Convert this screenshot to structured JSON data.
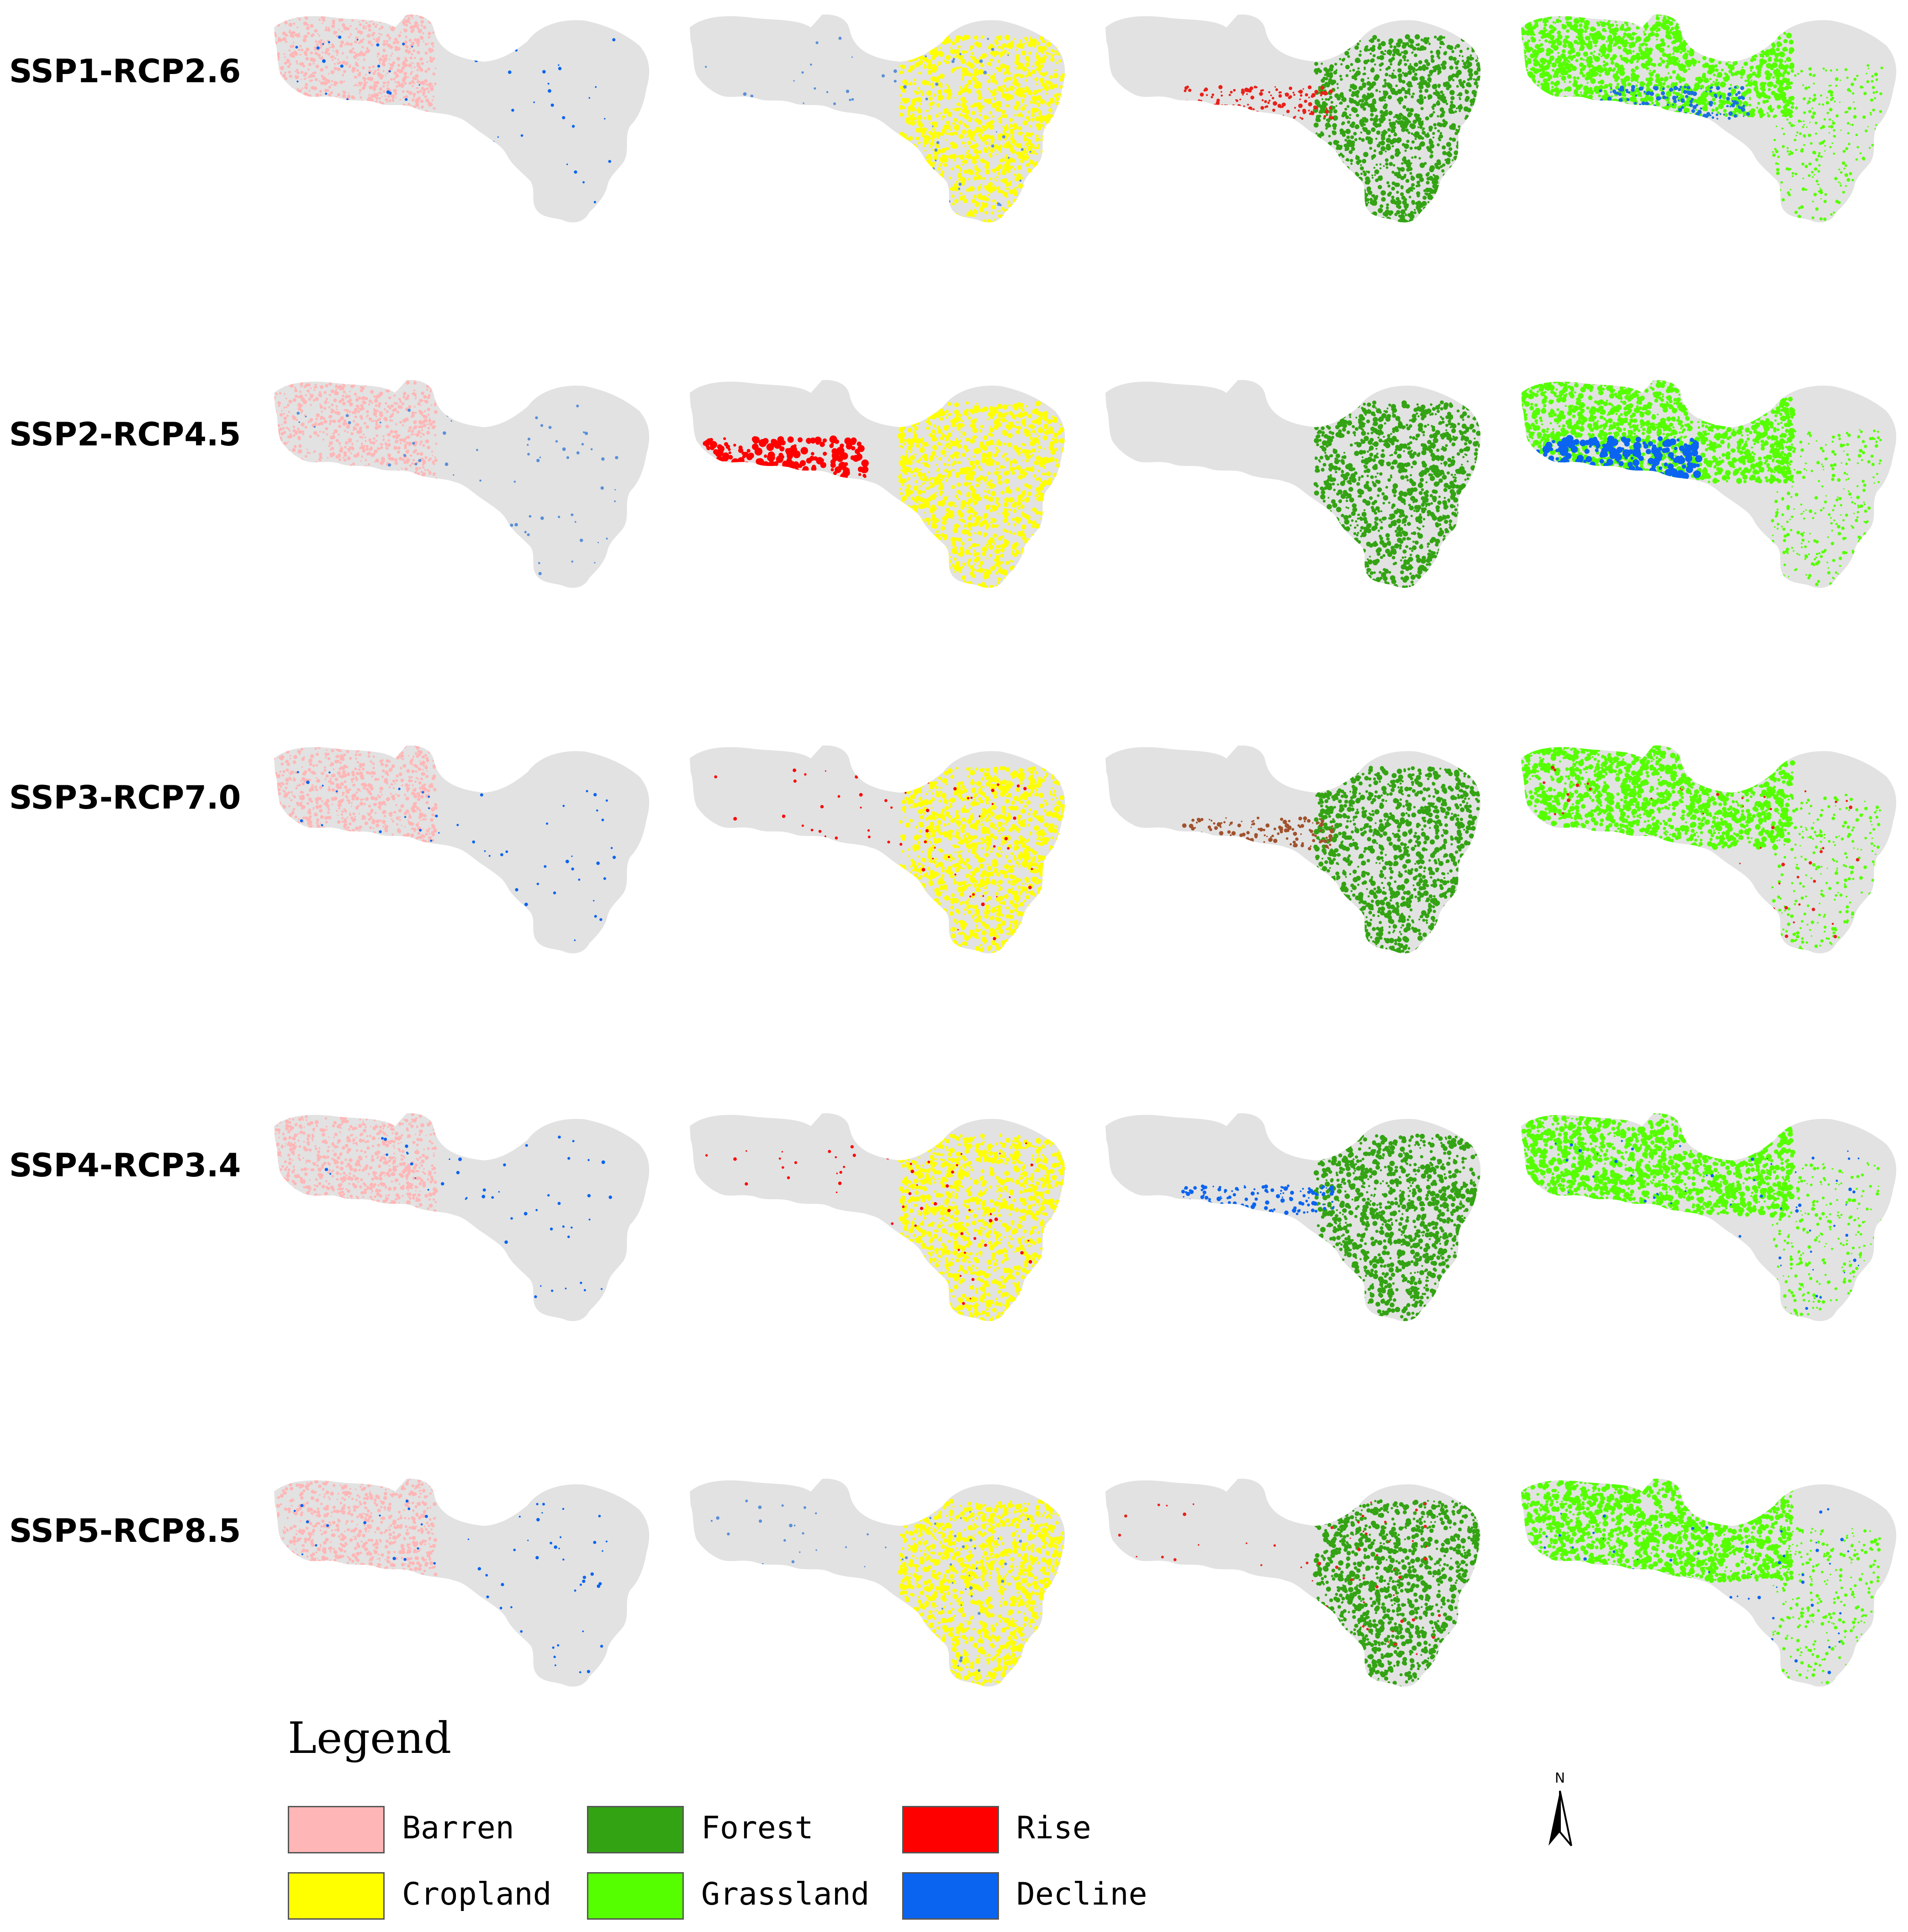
{
  "map_data": {
    "base_color": "#e2e2e2",
    "rows": [
      {
        "scenario": "SSP1-RCP2.6",
        "panels": [
          {
            "type": "Barren",
            "overlays": [
              {
                "kind": "pattern",
                "color": "#ffb6b6"
              },
              {
                "kind": "speck",
                "color": "#0a64f0"
              }
            ]
          },
          {
            "type": "Cropland",
            "overlays": [
              {
                "kind": "east",
                "color": "#ffff00"
              },
              {
                "kind": "speck",
                "color": "#5a8fd8"
              }
            ]
          },
          {
            "type": "Forest",
            "overlays": [
              {
                "kind": "east",
                "color": "#33a313"
              },
              {
                "kind": "belt",
                "color": "#e8211a"
              }
            ]
          },
          {
            "type": "Grassland",
            "overlays": [
              {
                "kind": "west",
                "color": "#55ff00"
              },
              {
                "kind": "belt",
                "color": "#1a6fe0"
              }
            ]
          }
        ]
      },
      {
        "scenario": "SSP2-RCP4.5",
        "panels": [
          {
            "type": "Barren",
            "overlays": [
              {
                "kind": "pattern",
                "color": "#ffb6b6"
              },
              {
                "kind": "speck",
                "color": "#5a8fd8"
              }
            ]
          },
          {
            "type": "Cropland",
            "overlays": [
              {
                "kind": "east",
                "color": "#ffff00"
              },
              {
                "kind": "blob",
                "color": "#ff0000"
              }
            ]
          },
          {
            "type": "Forest",
            "overlays": [
              {
                "kind": "east",
                "color": "#33a313"
              }
            ]
          },
          {
            "type": "Grassland",
            "overlays": [
              {
                "kind": "west",
                "color": "#55ff00"
              },
              {
                "kind": "blob",
                "color": "#0a64f0"
              }
            ]
          }
        ]
      },
      {
        "scenario": "SSP3-RCP7.0",
        "panels": [
          {
            "type": "Barren",
            "overlays": [
              {
                "kind": "pattern",
                "color": "#ffb6b6"
              },
              {
                "kind": "speck",
                "color": "#0a64f0"
              }
            ]
          },
          {
            "type": "Cropland",
            "overlays": [
              {
                "kind": "east",
                "color": "#ffff00"
              },
              {
                "kind": "speck",
                "color": "#ff0000"
              }
            ]
          },
          {
            "type": "Forest",
            "overlays": [
              {
                "kind": "east",
                "color": "#33a313"
              },
              {
                "kind": "belt",
                "color": "#a0522d"
              }
            ]
          },
          {
            "type": "Grassland",
            "overlays": [
              {
                "kind": "west",
                "color": "#55ff00"
              },
              {
                "kind": "speck",
                "color": "#e8211a"
              }
            ]
          }
        ]
      },
      {
        "scenario": "SSP4-RCP3.4",
        "panels": [
          {
            "type": "Barren",
            "overlays": [
              {
                "kind": "pattern",
                "color": "#ffb6b6"
              },
              {
                "kind": "speck",
                "color": "#0a64f0"
              }
            ]
          },
          {
            "type": "Cropland",
            "overlays": [
              {
                "kind": "east",
                "color": "#ffff00"
              },
              {
                "kind": "speck",
                "color": "#ff0000"
              }
            ]
          },
          {
            "type": "Forest",
            "overlays": [
              {
                "kind": "east",
                "color": "#33a313"
              },
              {
                "kind": "belt",
                "color": "#0a64f0"
              }
            ]
          },
          {
            "type": "Grassland",
            "overlays": [
              {
                "kind": "west",
                "color": "#55ff00"
              },
              {
                "kind": "speck",
                "color": "#0a64f0"
              }
            ]
          }
        ]
      },
      {
        "scenario": "SSP5-RCP8.5",
        "panels": [
          {
            "type": "Barren",
            "overlays": [
              {
                "kind": "pattern",
                "color": "#ffb6b6"
              },
              {
                "kind": "speck",
                "color": "#0a64f0"
              }
            ]
          },
          {
            "type": "Cropland",
            "overlays": [
              {
                "kind": "east",
                "color": "#ffff00"
              },
              {
                "kind": "speck",
                "color": "#5a8fd8"
              }
            ]
          },
          {
            "type": "Forest",
            "overlays": [
              {
                "kind": "east",
                "color": "#33a313"
              },
              {
                "kind": "speck",
                "color": "#e8211a"
              }
            ]
          },
          {
            "type": "Grassland",
            "overlays": [
              {
                "kind": "west",
                "color": "#55ff00"
              },
              {
                "kind": "speck",
                "color": "#0a64f0"
              }
            ]
          }
        ]
      }
    ]
  },
  "legend": {
    "title": "Legend",
    "items": [
      {
        "label": "Barren",
        "color": "#ffb6b6"
      },
      {
        "label": "Cropland",
        "color": "#ffff00"
      },
      {
        "label": "Forest",
        "color": "#33a313"
      },
      {
        "label": "Grassland",
        "color": "#55ff00"
      },
      {
        "label": "Rise",
        "color": "#ff0000"
      },
      {
        "label": "Decline",
        "color": "#0a64f0"
      }
    ]
  },
  "north_arrow": {
    "label": "N"
  }
}
